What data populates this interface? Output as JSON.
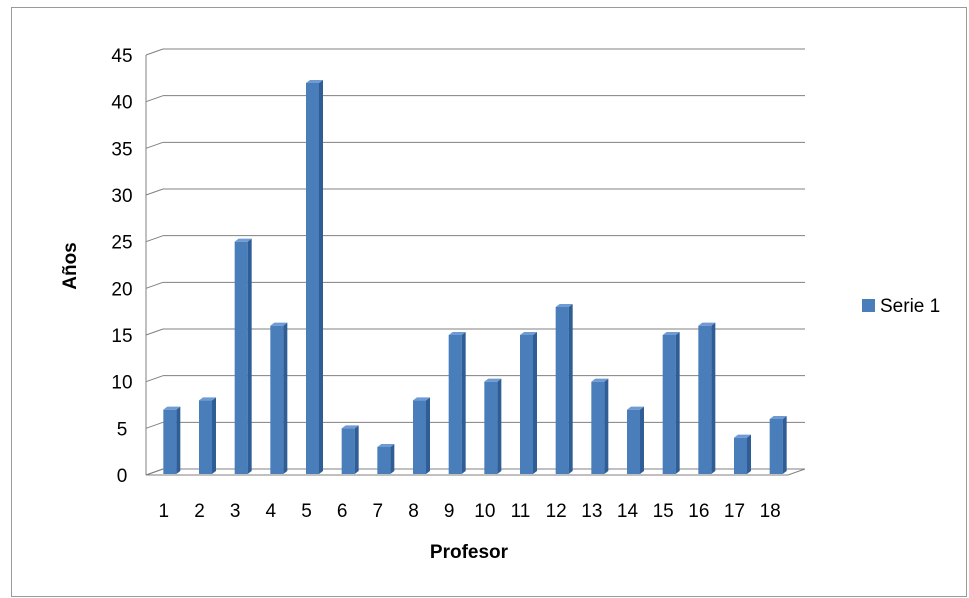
{
  "chart_data": {
    "type": "bar",
    "style": "3d-column",
    "xlabel": "Profesor",
    "ylabel": "Años",
    "categories": [
      "1",
      "2",
      "3",
      "4",
      "5",
      "6",
      "7",
      "8",
      "9",
      "10",
      "11",
      "12",
      "13",
      "14",
      "15",
      "16",
      "17",
      "18"
    ],
    "series": [
      {
        "name": "Serie 1",
        "values": [
          7,
          8,
          25,
          16,
          42,
          5,
          3,
          8,
          15,
          10,
          15,
          18,
          10,
          7,
          15,
          16,
          4,
          6
        ]
      }
    ],
    "ylim": [
      0,
      45
    ],
    "yticks": [
      0,
      5,
      10,
      15,
      20,
      25,
      30,
      35,
      40,
      45
    ],
    "grid": true,
    "legend_position": "right",
    "colors": {
      "bar": "#4a7ebb",
      "bar_top": "#6e9bd3",
      "bar_side": "#2f5d96",
      "grid": "#808080"
    }
  }
}
